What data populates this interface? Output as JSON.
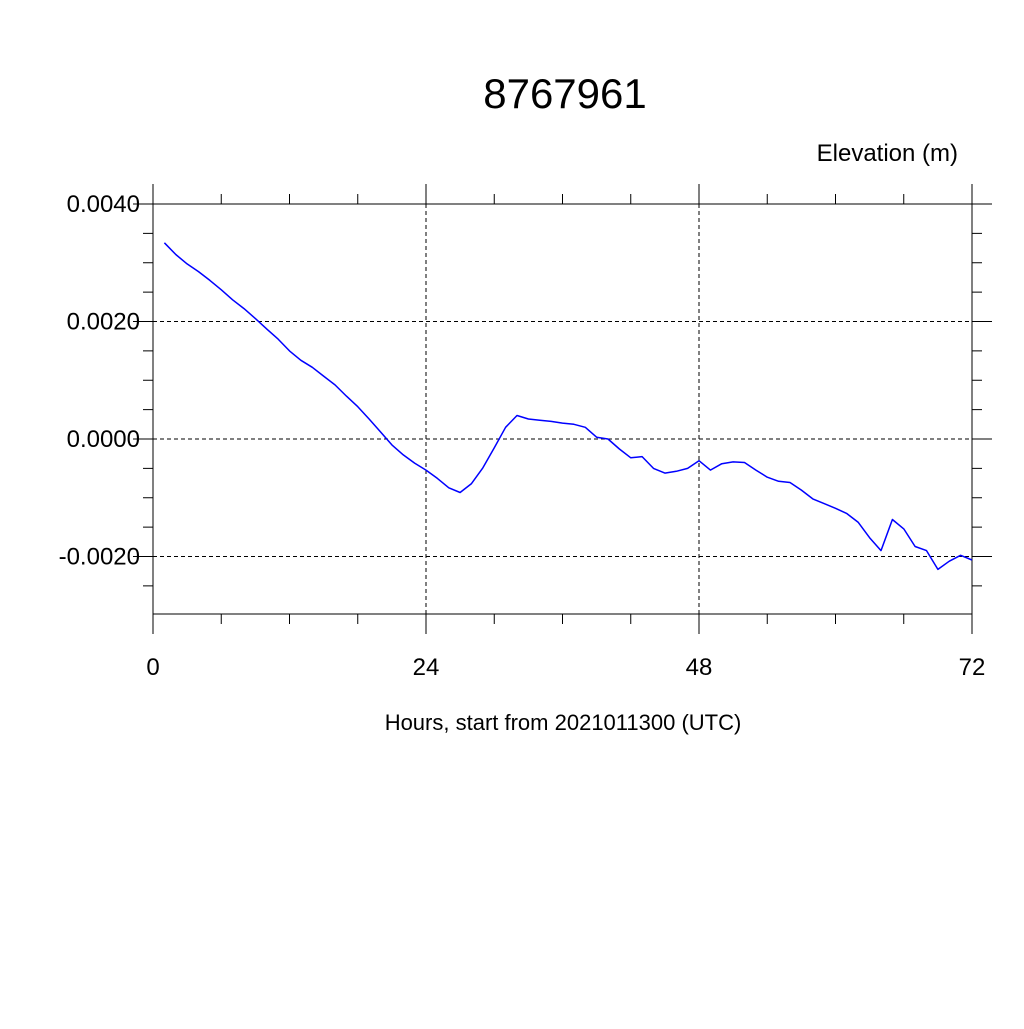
{
  "chart_data": {
    "type": "line",
    "title": "8767961",
    "ylabel": "Elevation (m)",
    "xlabel": "Hours, start from 2021011300 (UTC)",
    "xlim": [
      0,
      72
    ],
    "ylim": [
      -0.0031,
      0.0041
    ],
    "x_ticks": [
      0,
      24,
      48,
      72
    ],
    "x_tick_labels": [
      "0",
      "24",
      "48",
      "72"
    ],
    "y_ticks": [
      0.004,
      0.002,
      0.0,
      -0.002
    ],
    "y_tick_labels": [
      "0.0040",
      "0.0020",
      "0.0000",
      "-0.0020"
    ],
    "grid": true,
    "line_color": "#0000ff",
    "series": [
      {
        "x": [
          1,
          2,
          3,
          4,
          5,
          6,
          7,
          8,
          9,
          10,
          11,
          12,
          13,
          14,
          15,
          16,
          17,
          18,
          19,
          20,
          21,
          22,
          23,
          24,
          25,
          26,
          27,
          28,
          29,
          30,
          31,
          32,
          33,
          34,
          35,
          36,
          37,
          38,
          39,
          40,
          41,
          42,
          43,
          44,
          45,
          46,
          47,
          48,
          49,
          50,
          51,
          52,
          53,
          54,
          55,
          56,
          57,
          58,
          59,
          60,
          61,
          62,
          63,
          64,
          65,
          66,
          67,
          68,
          69,
          70,
          71,
          72
        ],
        "values": [
          0.00334,
          0.00314,
          0.00298,
          0.00285,
          0.0027,
          0.00254,
          0.00237,
          0.00222,
          0.00205,
          0.00187,
          0.0017,
          0.0015,
          0.00134,
          0.00122,
          0.00107,
          0.00092,
          0.00073,
          0.00055,
          0.00034,
          0.00012,
          -0.0001,
          -0.00027,
          -0.00041,
          -0.00053,
          -0.00067,
          -0.00083,
          -0.00091,
          -0.00076,
          -0.00049,
          -0.00015,
          0.0002,
          0.0004,
          0.00034,
          0.00032,
          0.0003,
          0.00027,
          0.00025,
          0.0002,
          3e-05,
          0.0,
          -0.00017,
          -0.00032,
          -0.0003,
          -0.0005,
          -0.00058,
          -0.00055,
          -0.0005,
          -0.00037,
          -0.00053,
          -0.00042,
          -0.00039,
          -0.0004,
          -0.00053,
          -0.00065,
          -0.00072,
          -0.00074,
          -0.00087,
          -0.00102,
          -0.0011,
          -0.00118,
          -0.00127,
          -0.00142,
          -0.00168,
          -0.0019,
          -0.00137,
          -0.00153,
          -0.00183,
          -0.0019,
          -0.00222,
          -0.00208,
          -0.00198,
          -0.00206
        ]
      }
    ]
  }
}
